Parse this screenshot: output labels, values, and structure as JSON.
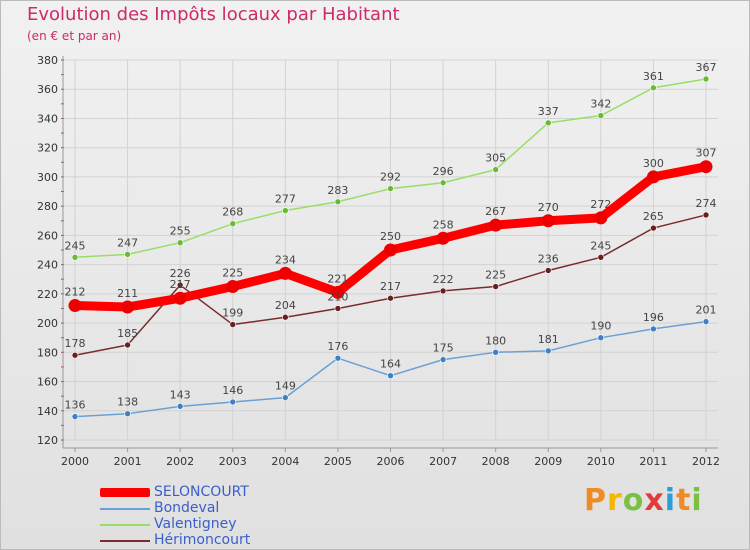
{
  "chart_data": {
    "type": "line",
    "title": "Evolution des Impôts locaux par Habitant",
    "subtitle": "(en € et par an)",
    "xlabel": "",
    "ylabel": "",
    "categories": [
      "2000",
      "2001",
      "2002",
      "2003",
      "2004",
      "2005",
      "2006",
      "2007",
      "2008",
      "2009",
      "2010",
      "2011",
      "2012"
    ],
    "ylim": [
      120,
      380
    ],
    "yticks": [
      120,
      140,
      160,
      180,
      200,
      220,
      240,
      260,
      280,
      300,
      320,
      340,
      360,
      380
    ],
    "grid": true,
    "legend_position": "bottom-left",
    "series": [
      {
        "name": "SELONCOURT",
        "color": "#ff0000",
        "marker_color": "#ee0000",
        "emphasis": true,
        "values": [
          212,
          211,
          217,
          225,
          234,
          221,
          250,
          258,
          267,
          270,
          272,
          300,
          307
        ],
        "labels": [
          "212",
          "211",
          "217",
          "225",
          "234",
          "221",
          "250",
          "258",
          "267",
          "270",
          "272",
          "300",
          "307"
        ]
      },
      {
        "name": "Bondeval",
        "color": "#6aa0d6",
        "marker_color": "#3f7fc4",
        "emphasis": false,
        "values": [
          136,
          138,
          143,
          146,
          149,
          176,
          164,
          175,
          180,
          181,
          190,
          196,
          201
        ],
        "labels": [
          "136",
          "138",
          "143",
          "146",
          "149",
          "176",
          "164",
          "175",
          "180",
          "181",
          "190",
          "196",
          "201"
        ]
      },
      {
        "name": "Valentigney",
        "color": "#99dd66",
        "marker_color": "#66bb33",
        "emphasis": false,
        "values": [
          245,
          247,
          255,
          268,
          277,
          283,
          292,
          296,
          305,
          337,
          342,
          361,
          367
        ],
        "labels": [
          "245",
          "247",
          "255",
          "268",
          "277",
          "283",
          "292",
          "296",
          "305",
          "337",
          "342",
          "361",
          "367"
        ]
      },
      {
        "name": "Hérimoncourt",
        "color": "#7a2b2b",
        "marker_color": "#6a1f1f",
        "emphasis": false,
        "values": [
          178,
          185,
          226,
          199,
          204,
          210,
          217,
          222,
          225,
          236,
          245,
          265,
          274
        ],
        "labels": [
          "178",
          "185",
          "226",
          "199",
          "204",
          "210",
          "217",
          "222",
          "225",
          "236",
          "245",
          "265",
          "274"
        ]
      }
    ]
  },
  "logo": {
    "letters": [
      "P",
      "r",
      "o",
      "x",
      "i",
      "t",
      "i"
    ],
    "colors": [
      "#f08a24",
      "#f5b800",
      "#7ac143",
      "#e23b3b",
      "#2a9fd6",
      "#f08a24",
      "#7ac143"
    ]
  }
}
